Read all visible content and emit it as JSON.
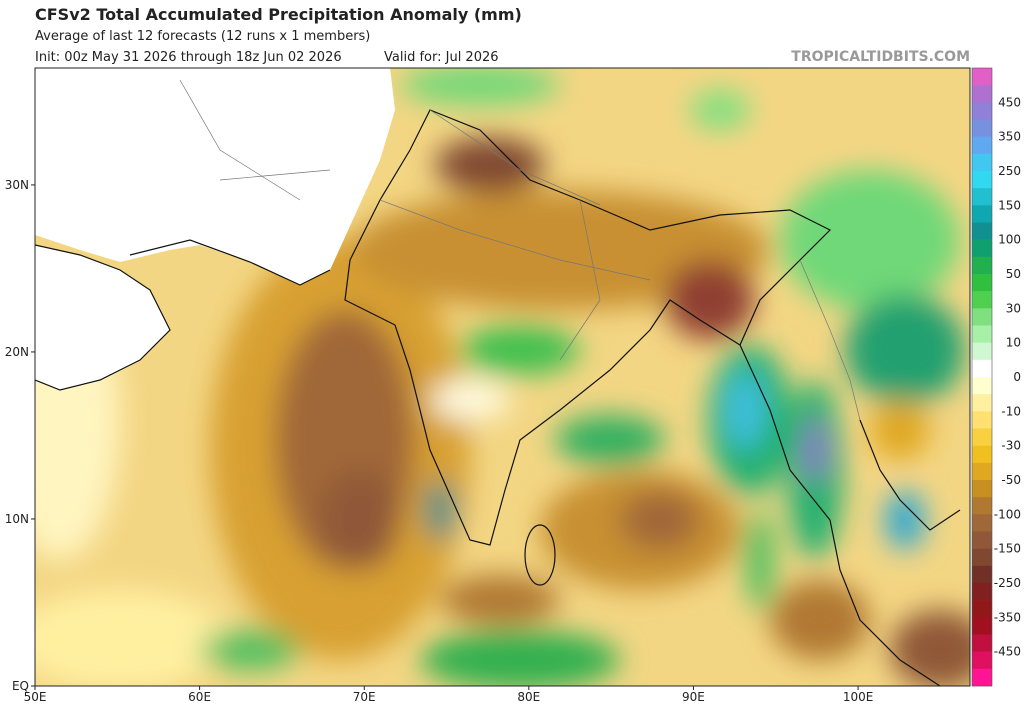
{
  "header": {
    "title": "CFSv2 Total Accumulated Precipitation Anomaly (mm)",
    "subtitle": "Average of last 12 forecasts (12 runs x 1 members)",
    "init": "Init: 00z May 31 2026 through 18z Jun 02 2026",
    "valid": "Valid for: Jul 2026",
    "credit": "TROPICALTIDBITS.COM"
  },
  "map": {
    "xlim": [
      50,
      106.8
    ],
    "ylim": [
      0,
      37
    ],
    "xticks": [
      {
        "value": 50,
        "label": "50E"
      },
      {
        "value": 60,
        "label": "60E"
      },
      {
        "value": 70,
        "label": "70E"
      },
      {
        "value": 80,
        "label": "80E"
      },
      {
        "value": 90,
        "label": "90E"
      },
      {
        "value": 100,
        "label": "100E"
      }
    ],
    "yticks": [
      {
        "value": 0,
        "label": "EQ"
      },
      {
        "value": 10,
        "label": "10N"
      },
      {
        "value": 20,
        "label": "20N"
      },
      {
        "value": 30,
        "label": "30N"
      }
    ]
  },
  "colorbar": {
    "colors": [
      "#e060c8",
      "#b070d0",
      "#9080d8",
      "#7890e0",
      "#60a8f0",
      "#40c8f0",
      "#30d8f0",
      "#20c0d0",
      "#10a8b0",
      "#109090",
      "#10a070",
      "#20b050",
      "#30c040",
      "#50d050",
      "#80e080",
      "#a8f0a8",
      "#d0f8d0",
      "#ffffff",
      "#ffffd0",
      "#fff0a0",
      "#ffe070",
      "#f8d040",
      "#f0c020",
      "#e0a820",
      "#c89020",
      "#b07830",
      "#a06838",
      "#905838",
      "#804830",
      "#703028",
      "#802020",
      "#901818",
      "#a01020",
      "#c01040",
      "#e01060",
      "#ff1493"
    ],
    "labels": [
      "450",
      "350",
      "250",
      "150",
      "100",
      "50",
      "30",
      "10",
      "0",
      "-10",
      "-30",
      "-50",
      "-100",
      "-150",
      "-250",
      "-350",
      "-450"
    ]
  }
}
